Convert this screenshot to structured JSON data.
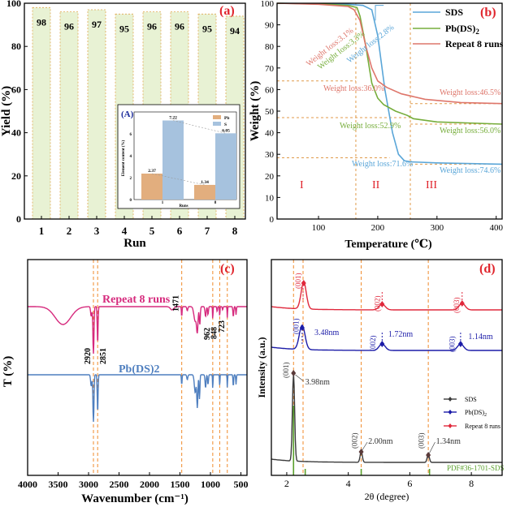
{
  "panels": {
    "a": {
      "tag": "(a)",
      "chart_data": {
        "type": "bar",
        "categories": [
          "1",
          "2",
          "3",
          "4",
          "5",
          "6",
          "7",
          "8"
        ],
        "values": [
          98,
          96,
          97,
          95,
          96,
          96,
          95,
          94
        ],
        "xlabel": "Run",
        "ylabel": "Yield (%)",
        "ylim": [
          0,
          100
        ],
        "yticks": [
          "0",
          "20",
          "40",
          "60",
          "80",
          "100"
        ],
        "bar_color": "#e8f2d4",
        "label_color": "#000000"
      },
      "inset": {
        "tag": "(A)",
        "chart_data": {
          "type": "bar",
          "categories": [
            "1",
            "8"
          ],
          "series": [
            {
              "name": "Pb",
              "values": [
                2.37,
                1.34
              ],
              "color": "#e2ae7e"
            },
            {
              "name": "S",
              "values": [
                7.22,
                6.05
              ],
              "color": "#a6c2de"
            }
          ],
          "xlabel": "Runs",
          "ylabel": "Element content (%)",
          "ylim": [
            0,
            8
          ],
          "yticks": [
            "0",
            "2",
            "4",
            "6"
          ],
          "labels": [
            "2.37",
            "7.22",
            "1.34",
            "6.05"
          ]
        }
      }
    },
    "b": {
      "tag": "(b)",
      "chart_data": {
        "type": "line",
        "xlabel": "Temperature (℃)",
        "ylabel": "Weight (%)",
        "xlim": [
          30,
          410
        ],
        "ylim": [
          0,
          100
        ],
        "xticks": [
          "100",
          "200",
          "300",
          "400"
        ],
        "yticks": [
          "0",
          "10",
          "20",
          "30",
          "40",
          "50",
          "60",
          "70",
          "80",
          "90",
          "100"
        ],
        "series": [
          {
            "name": "SDS",
            "color": "#5aa6d8",
            "x": [
              30,
              100,
              150,
              175,
              190,
              200,
              212,
              225,
              235,
              245,
              255,
              300,
              410
            ],
            "y": [
              100,
              99.8,
              99.5,
              99,
              97,
              85,
              60,
              40,
              30,
              27,
              26.5,
              26,
              25.4
            ]
          },
          {
            "name": "Pb(DS)2",
            "color": "#76ad3b",
            "x": [
              30,
              100,
              150,
              165,
              170,
              180,
              190,
              200,
              210,
              230,
              250,
              260,
              300,
              410
            ],
            "y": [
              100,
              99.7,
              99,
              98,
              94,
              80,
              63,
              56,
              53,
              50,
              48,
              46.5,
              45,
              44
            ]
          },
          {
            "name": "Repeat 8 runs",
            "color": "#de766b",
            "x": [
              30,
              100,
              150,
              160,
              170,
              180,
              190,
              200,
              215,
              240,
              280,
              340,
              410
            ],
            "y": [
              100,
              99.5,
              98.5,
              97,
              92,
              80,
              70,
              64,
              61,
              58,
              55.5,
              54,
              53.5
            ]
          }
        ],
        "annotations": {
          "rot_red": "Weight loss:3.1%",
          "rot_green": "Weight loss:3.3%",
          "rot_blue": "Weight loss:2.8%",
          "wl_360": "Weight loss:36.0%",
          "wl_465": "Weight loss:46.5%",
          "wl_529": "Weight loss:52.9%",
          "wl_560": "Weight loss:56.0%",
          "wl_716": "Weight loss:71.6%",
          "wl_746": "Weight loss:74.6%"
        },
        "regions": [
          "I",
          "II",
          "III"
        ]
      }
    },
    "c": {
      "tag": "(c)",
      "chart_data": {
        "type": "line",
        "xlabel": "Wavenumber (cm⁻¹)",
        "ylabel": "T (%)",
        "xlim": [
          4000,
          400
        ],
        "xticks": [
          "4000",
          "3500",
          "3000",
          "2500",
          "2000",
          "1500",
          "1000",
          "500"
        ],
        "series": [
          {
            "name": "Repeat 8 runs",
            "color": "#d62a7d"
          },
          {
            "name": "Pb(DS)2",
            "color": "#4f7fbf"
          }
        ],
        "peaks": [
          "2920",
          "2851",
          "1471",
          "962",
          "848",
          "723"
        ]
      }
    },
    "d": {
      "tag": "(d)",
      "chart_data": {
        "type": "line",
        "xlabel": "2θ (degree)",
        "ylabel": "Intensity (a.u.)",
        "xlim": [
          1.5,
          9
        ],
        "xticks": [
          "2",
          "4",
          "6",
          "8"
        ],
        "series": [
          {
            "name": "SDS",
            "color": "#3b3b3b"
          },
          {
            "name": "Pb(DS)2",
            "color": "#1c1ca8"
          },
          {
            "name": "Repeat 8 runs",
            "color": "#e0283c"
          }
        ],
        "peak_labels": {
          "red_001": "(001)",
          "red_002": "(002)",
          "red_003": "(003)",
          "blue_001": "(001)",
          "blue_002": "(002)",
          "blue_003": "(003)",
          "black_001": "(001)",
          "black_002": "(002)",
          "black_003": "(003)",
          "d_348": "3.48nm",
          "d_172": "1.72nm",
          "d_114": "1.14nm",
          "d_398": "3.98nm",
          "d_200": "2.00nm",
          "d_134": "1.34nm"
        },
        "pdf_label": "PDF#36-1701-SDS"
      }
    }
  }
}
